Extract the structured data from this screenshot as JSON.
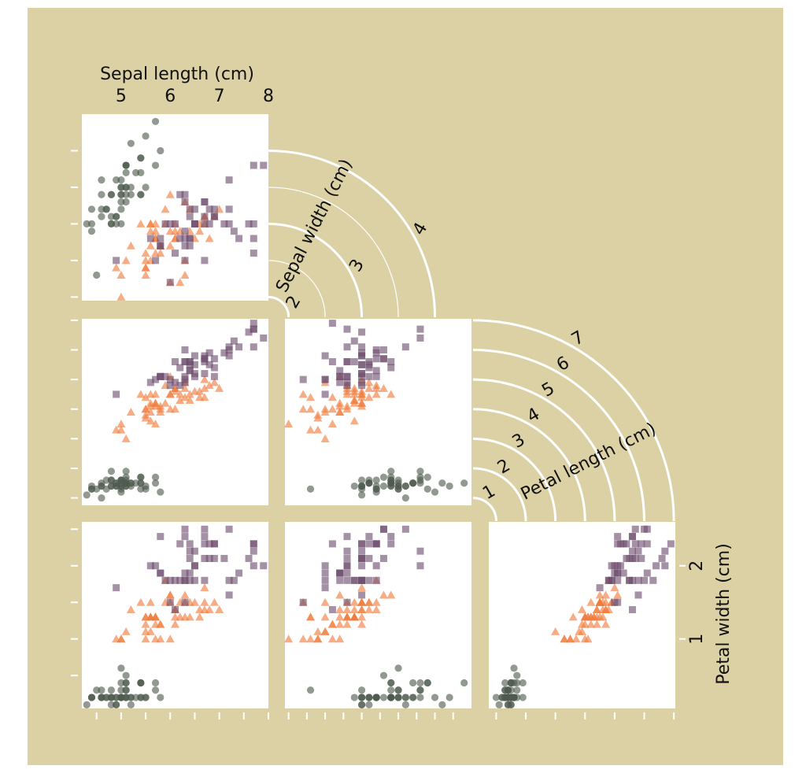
{
  "chart_data": {
    "type": "scatter_matrix",
    "variables": [
      {
        "label": "Sepal length (cm)",
        "lim": [
          4.2,
          8.0
        ],
        "ticks": [
          5,
          6,
          7,
          8
        ],
        "tick_marks_x": [
          4.5,
          5,
          5.5,
          6,
          6.5,
          7,
          7.5,
          8
        ]
      },
      {
        "label": "Sepal width (cm)",
        "lim": [
          1.95,
          4.5
        ],
        "ticks": [
          2,
          3,
          4
        ],
        "tick_marks_x": [
          2,
          2.25,
          2.5,
          2.75,
          3,
          3.25,
          3.5,
          3.75,
          4,
          4.25
        ],
        "tick_marks_y": [
          2,
          2.5,
          3,
          3.5,
          4
        ]
      },
      {
        "label": "Petal length (cm)",
        "lim": [
          0.75,
          7.05
        ],
        "ticks": [
          1,
          2,
          3,
          4,
          5,
          6,
          7
        ],
        "tick_marks_x": [
          1,
          2,
          3,
          4,
          5,
          6,
          7
        ],
        "tick_marks_y": [
          1,
          2,
          3,
          4,
          5,
          6,
          7
        ]
      },
      {
        "label": "Petal width (cm)",
        "lim": [
          0.05,
          2.6
        ],
        "ticks": [
          1,
          2
        ],
        "tick_marks_y": [
          0.5,
          1,
          1.5,
          2,
          2.5
        ]
      }
    ],
    "series": [
      {
        "color": "#4e5a4e",
        "marker": "circle",
        "values": [
          [
            5.1,
            4.9,
            4.7,
            4.6,
            5.0,
            5.4,
            4.6,
            5.0,
            4.4,
            4.9,
            5.4,
            4.8,
            4.8,
            4.3,
            5.8,
            5.7,
            5.4,
            5.1,
            5.7,
            5.1,
            5.4,
            5.1,
            4.6,
            5.1,
            4.8,
            5.0,
            5.0,
            5.2,
            5.2,
            4.7,
            4.8,
            5.4,
            5.2,
            5.5,
            4.9,
            5.0,
            5.5,
            4.9,
            4.4,
            5.1,
            5.0,
            4.5,
            4.4,
            5.0,
            5.1,
            4.8,
            5.1,
            4.6,
            5.3,
            5.0
          ],
          [
            3.5,
            3.0,
            3.2,
            3.1,
            3.6,
            3.9,
            3.4,
            3.4,
            2.9,
            3.1,
            3.7,
            3.4,
            3.0,
            3.0,
            4.0,
            4.4,
            3.9,
            3.5,
            3.8,
            3.8,
            3.4,
            3.7,
            3.6,
            3.3,
            3.4,
            3.0,
            3.4,
            3.5,
            3.4,
            3.2,
            3.1,
            3.4,
            4.1,
            4.2,
            3.1,
            3.2,
            3.5,
            3.6,
            3.0,
            3.4,
            3.5,
            2.3,
            3.2,
            3.5,
            3.8,
            3.0,
            3.8,
            3.2,
            3.7,
            3.3
          ],
          [
            1.4,
            1.4,
            1.3,
            1.5,
            1.4,
            1.7,
            1.4,
            1.5,
            1.4,
            1.5,
            1.5,
            1.6,
            1.4,
            1.1,
            1.2,
            1.5,
            1.3,
            1.4,
            1.7,
            1.5,
            1.7,
            1.5,
            1.0,
            1.7,
            1.9,
            1.6,
            1.6,
            1.5,
            1.4,
            1.6,
            1.6,
            1.5,
            1.5,
            1.4,
            1.5,
            1.2,
            1.3,
            1.4,
            1.3,
            1.5,
            1.3,
            1.3,
            1.3,
            1.6,
            1.9,
            1.4,
            1.6,
            1.4,
            1.5,
            1.4
          ],
          [
            0.2,
            0.2,
            0.2,
            0.2,
            0.2,
            0.4,
            0.3,
            0.2,
            0.2,
            0.1,
            0.2,
            0.2,
            0.1,
            0.1,
            0.2,
            0.4,
            0.4,
            0.3,
            0.3,
            0.3,
            0.2,
            0.4,
            0.2,
            0.5,
            0.2,
            0.2,
            0.4,
            0.2,
            0.2,
            0.2,
            0.2,
            0.4,
            0.1,
            0.2,
            0.2,
            0.2,
            0.2,
            0.1,
            0.2,
            0.2,
            0.3,
            0.3,
            0.2,
            0.6,
            0.4,
            0.3,
            0.2,
            0.2,
            0.2,
            0.2
          ]
        ]
      },
      {
        "color": "#f07a3a",
        "marker": "triangle",
        "values": [
          [
            7.0,
            6.4,
            6.9,
            5.5,
            6.5,
            5.7,
            6.3,
            4.9,
            6.6,
            5.2,
            5.0,
            5.9,
            6.0,
            6.1,
            5.6,
            6.7,
            5.6,
            5.8,
            6.2,
            5.6,
            5.9,
            6.1,
            6.3,
            6.1,
            6.4,
            6.6,
            6.8,
            6.7,
            6.0,
            5.7,
            5.5,
            5.5,
            5.8,
            6.0,
            5.4,
            6.0,
            6.7,
            6.3,
            5.6,
            5.5,
            5.5,
            6.1,
            5.8,
            5.0,
            5.6,
            5.7,
            5.7,
            6.2,
            5.1,
            5.7
          ],
          [
            3.2,
            3.2,
            3.1,
            2.3,
            2.8,
            2.8,
            3.3,
            2.4,
            2.9,
            2.7,
            2.0,
            3.0,
            2.2,
            2.9,
            2.9,
            3.1,
            3.0,
            2.7,
            2.2,
            2.5,
            3.2,
            2.8,
            2.5,
            2.8,
            2.9,
            3.0,
            2.8,
            3.0,
            2.9,
            2.6,
            2.4,
            2.4,
            2.7,
            2.7,
            3.0,
            3.4,
            3.1,
            2.3,
            3.0,
            2.5,
            2.6,
            3.0,
            2.6,
            2.3,
            2.7,
            3.0,
            2.9,
            2.9,
            2.5,
            2.8
          ],
          [
            4.7,
            4.5,
            4.9,
            4.0,
            4.6,
            4.5,
            4.7,
            3.3,
            4.6,
            3.9,
            3.5,
            4.2,
            4.0,
            4.7,
            3.6,
            4.4,
            4.5,
            4.1,
            4.5,
            3.9,
            4.8,
            4.0,
            4.9,
            4.7,
            4.3,
            4.4,
            4.8,
            5.0,
            4.5,
            3.5,
            3.8,
            3.7,
            3.9,
            5.1,
            4.5,
            4.5,
            4.7,
            4.4,
            4.1,
            4.0,
            4.4,
            4.6,
            4.0,
            3.3,
            4.2,
            4.2,
            4.2,
            4.3,
            3.0,
            4.1
          ],
          [
            1.4,
            1.5,
            1.5,
            1.3,
            1.5,
            1.3,
            1.6,
            1.0,
            1.3,
            1.4,
            1.0,
            1.5,
            1.0,
            1.4,
            1.3,
            1.4,
            1.5,
            1.0,
            1.5,
            1.1,
            1.8,
            1.3,
            1.5,
            1.2,
            1.3,
            1.4,
            1.4,
            1.7,
            1.5,
            1.0,
            1.1,
            1.0,
            1.2,
            1.6,
            1.5,
            1.6,
            1.5,
            1.3,
            1.3,
            1.3,
            1.2,
            1.4,
            1.2,
            1.0,
            1.3,
            1.2,
            1.3,
            1.3,
            1.1,
            1.3
          ]
        ]
      },
      {
        "color": "#6e4d6e",
        "marker": "square",
        "values": [
          [
            6.3,
            5.8,
            7.1,
            6.3,
            6.5,
            7.6,
            4.9,
            7.3,
            6.7,
            7.2,
            6.5,
            6.4,
            6.8,
            5.7,
            5.8,
            6.4,
            6.5,
            7.7,
            7.7,
            6.0,
            6.9,
            5.6,
            7.7,
            6.3,
            6.7,
            7.2,
            6.2,
            6.1,
            6.4,
            7.2,
            7.4,
            7.9,
            6.4,
            6.3,
            6.1,
            7.7,
            6.3,
            6.4,
            6.0,
            6.9,
            6.7,
            6.9,
            5.8,
            6.8,
            6.7,
            6.7,
            6.3,
            6.5,
            6.2,
            5.9
          ],
          [
            3.3,
            2.7,
            3.0,
            2.9,
            3.0,
            3.0,
            2.5,
            2.9,
            2.5,
            3.6,
            3.2,
            2.7,
            3.0,
            2.5,
            2.8,
            3.2,
            3.0,
            3.8,
            2.6,
            2.2,
            3.2,
            2.8,
            2.8,
            2.7,
            3.3,
            3.2,
            2.8,
            3.0,
            2.8,
            3.0,
            2.8,
            3.8,
            2.8,
            2.8,
            2.6,
            3.0,
            3.4,
            3.1,
            3.0,
            3.1,
            3.1,
            3.1,
            2.7,
            3.2,
            3.3,
            3.0,
            2.5,
            3.0,
            3.4,
            3.0
          ],
          [
            6.0,
            5.1,
            5.9,
            5.6,
            5.8,
            6.6,
            4.5,
            6.3,
            5.8,
            6.1,
            5.1,
            5.3,
            5.5,
            5.0,
            5.1,
            5.3,
            5.5,
            6.7,
            6.9,
            5.0,
            5.7,
            4.9,
            6.7,
            4.9,
            5.7,
            6.0,
            4.8,
            4.9,
            5.6,
            5.8,
            6.1,
            6.4,
            5.6,
            5.1,
            5.6,
            6.1,
            5.6,
            5.5,
            4.8,
            5.4,
            5.6,
            5.1,
            5.1,
            5.9,
            5.7,
            5.2,
            5.0,
            5.2,
            5.4,
            5.1
          ],
          [
            2.5,
            1.9,
            2.1,
            1.8,
            2.2,
            2.1,
            1.7,
            1.8,
            1.8,
            2.5,
            2.0,
            1.9,
            2.1,
            2.0,
            2.4,
            2.3,
            1.8,
            2.2,
            2.3,
            1.5,
            2.3,
            2.0,
            2.0,
            1.8,
            2.1,
            1.8,
            1.8,
            1.8,
            2.1,
            1.6,
            1.9,
            2.0,
            2.2,
            1.5,
            1.4,
            2.3,
            2.4,
            1.8,
            1.8,
            2.1,
            2.4,
            2.3,
            1.9,
            2.3,
            2.5,
            2.3,
            1.9,
            2.0,
            2.3,
            1.8
          ]
        ]
      }
    ]
  }
}
